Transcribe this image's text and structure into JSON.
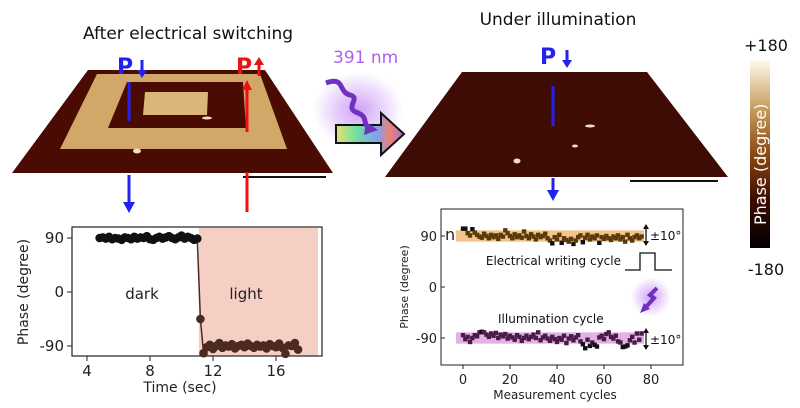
{
  "panels": {
    "left_title": "After electrical switching",
    "right_title": "Under illumination",
    "wavelength": "391 nm",
    "p_down": "P",
    "p_up": "P"
  },
  "colorbar": {
    "max_label": "+180",
    "min_label": "-180",
    "title": "Phase (degree)",
    "colors": [
      "#fffaf0",
      "#c8a060",
      "#8a4a10",
      "#3a0a00",
      "#000000"
    ]
  },
  "colors": {
    "p_down": "#2222ee",
    "p_up": "#ee1111",
    "light_region": "#f6cfc4",
    "electrical_band": "#f3c48c",
    "illumination_band": "#e2b2e6",
    "illumination_glow": "#b060f0"
  },
  "chart_data": [
    {
      "type": "scatter",
      "xlabel": "Time (sec)",
      "ylabel": "Phase (degree)",
      "xticks": [
        "4",
        "8",
        "12",
        "16"
      ],
      "yticks": [
        "90",
        "0",
        "-90"
      ],
      "annotations": {
        "dark": "dark",
        "light": "light"
      },
      "light_region_start": 11.1,
      "xlim": [
        2.8,
        19
      ],
      "ylim": [
        -110,
        105
      ],
      "series": [
        {
          "x": [
            4.8,
            5.0,
            5.2,
            5.4,
            5.6,
            5.8,
            6.0,
            6.2,
            6.4,
            6.6,
            6.8,
            7.0,
            7.2,
            7.4,
            7.6,
            7.8,
            8.0,
            8.2,
            8.4,
            8.6,
            8.8,
            9.0,
            9.2,
            9.4,
            9.6,
            9.8,
            10.0,
            10.2,
            10.4,
            10.6,
            10.8,
            11.0
          ],
          "y": [
            90,
            91,
            89,
            92,
            88,
            90,
            89,
            87,
            91,
            90,
            88,
            92,
            89,
            91,
            90,
            93,
            88,
            87,
            90,
            92,
            89,
            91,
            93,
            90,
            88,
            91,
            94,
            89,
            92,
            90,
            87,
            89
          ]
        },
        {
          "x": [
            11.2,
            11.4,
            11.6,
            11.8,
            12.0,
            12.2,
            12.4,
            12.6,
            12.8,
            13.0,
            13.2,
            13.4,
            13.6,
            13.8,
            14.0,
            14.2,
            14.4,
            14.6,
            14.8,
            15.0,
            15.2,
            15.4,
            15.6,
            15.8,
            16.0,
            16.2,
            16.4,
            16.6,
            16.8,
            17.0,
            17.2,
            17.4
          ],
          "y": [
            -45,
            -102,
            -92,
            -88,
            -95,
            -90,
            -85,
            -93,
            -89,
            -91,
            -87,
            -94,
            -90,
            -88,
            -92,
            -86,
            -90,
            -93,
            -88,
            -91,
            -89,
            -94,
            -87,
            -90,
            -92,
            -86,
            -93,
            -103,
            -89,
            -90,
            -85,
            -96
          ]
        }
      ]
    },
    {
      "type": "scatter",
      "xlabel": "Measurement cycles",
      "ylabel": "Phase (degree)",
      "xticks": [
        "0",
        "20",
        "40",
        "60",
        "80"
      ],
      "yticks": [
        "90",
        "0",
        "-90"
      ],
      "panel_label": "n",
      "xlim": [
        -10,
        93
      ],
      "ylim": [
        -140,
        130
      ],
      "band_half_width": 10,
      "band_label": "±10°",
      "annotations": {
        "electrical": "Electrical writing cycle",
        "illumination": "Illumination cycle"
      },
      "series": [
        {
          "name": "Electrical writing cycle",
          "y": [
            103,
            103,
            95,
            91,
            102,
            96,
            92,
            89,
            87,
            94,
            90,
            86,
            92,
            88,
            91,
            85,
            92,
            89,
            100,
            95,
            90,
            86,
            93,
            88,
            91,
            87,
            98,
            90,
            86,
            93,
            89,
            84,
            92,
            88,
            90,
            94,
            86,
            82,
            77,
            88,
            84,
            92,
            78,
            86,
            83,
            80,
            85,
            76,
            82,
            88,
            91,
            79,
            87,
            92,
            84,
            89,
            86,
            91,
            78,
            88,
            85,
            90,
            86,
            83,
            89,
            86,
            91,
            84,
            88,
            80,
            92,
            86,
            82,
            88,
            91,
            86,
            89
          ]
        },
        {
          "name": "Illumination cycle",
          "y": [
            -85,
            -92,
            -88,
            -97,
            -90,
            -85,
            -87,
            -80,
            -79,
            -80,
            -84,
            -88,
            -82,
            -86,
            -81,
            -90,
            -84,
            -87,
            -83,
            -91,
            -86,
            -89,
            -93,
            -85,
            -88,
            -95,
            -90,
            -86,
            -92,
            -88,
            -84,
            -90,
            -80,
            -94,
            -89,
            -86,
            -91,
            -95,
            -88,
            -92,
            -97,
            -90,
            -93,
            -86,
            -99,
            -91,
            -87,
            -94,
            -89,
            -85,
            -96,
            -101,
            -108,
            -93,
            -104,
            -98,
            -102,
            -105,
            -89,
            -86,
            -92,
            -83,
            -80,
            -88,
            -91,
            -86,
            -96,
            -98,
            -106,
            -105,
            -103,
            -94,
            -88,
            -98,
            -82,
            -93,
            -82
          ]
        }
      ]
    }
  ]
}
